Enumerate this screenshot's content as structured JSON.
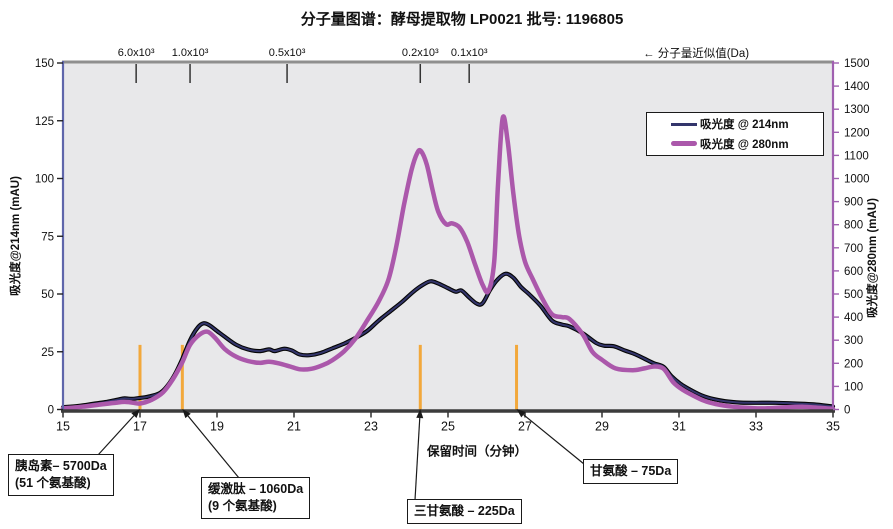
{
  "chart_data": {
    "type": "line",
    "title": "分子量图谱：酵母提取物 LP0021  批号: 1196805",
    "top_axis": {
      "label": "← 分子量近似值(Da)",
      "ticks": [
        {
          "label": "6.0x10³",
          "x": 16.9
        },
        {
          "label": "1.0x10³",
          "x": 18.3
        },
        {
          "label": "0.5x10³",
          "x": 20.82
        },
        {
          "label": "0.2x10³",
          "x": 24.28
        },
        {
          "label": "0.1x10³",
          "x": 25.55
        }
      ]
    },
    "x_axis": {
      "label": "保留时间（分钟）",
      "range": [
        15,
        35
      ],
      "ticks": [
        15,
        17,
        19,
        21,
        23,
        25,
        27,
        29,
        31,
        33,
        35
      ]
    },
    "y_left": {
      "label": "吸光度@214nm (mAU)",
      "range": [
        0,
        150
      ],
      "ticks": [
        0,
        25,
        50,
        75,
        100,
        125,
        150
      ]
    },
    "y_right": {
      "label": "吸光度@280nm (mAU)",
      "range": [
        0,
        1500
      ],
      "ticks": [
        0,
        100,
        200,
        300,
        400,
        500,
        600,
        700,
        800,
        900,
        1000,
        1100,
        1200,
        1300,
        1400,
        1500
      ]
    },
    "grid": false,
    "legend_position": "upper-right",
    "plot_background": "#e8e8ea",
    "series": [
      {
        "name": "吸光度 @ 214nm",
        "axis": "left",
        "color": "#33356b",
        "shadow_color": "#050505",
        "points": [
          [
            15,
            1
          ],
          [
            15.4,
            1.5
          ],
          [
            15.8,
            2.5
          ],
          [
            16.1,
            3.2
          ],
          [
            16.4,
            4.2
          ],
          [
            16.6,
            4.8
          ],
          [
            16.8,
            4.6
          ],
          [
            17.0,
            5
          ],
          [
            17.2,
            5.5
          ],
          [
            17.5,
            7
          ],
          [
            17.7,
            10
          ],
          [
            17.9,
            15
          ],
          [
            18.1,
            22
          ],
          [
            18.3,
            30
          ],
          [
            18.5,
            35.5
          ],
          [
            18.65,
            37.3
          ],
          [
            18.8,
            36.5
          ],
          [
            19.0,
            34
          ],
          [
            19.2,
            31.5
          ],
          [
            19.5,
            28
          ],
          [
            19.8,
            26
          ],
          [
            20.1,
            25.3
          ],
          [
            20.35,
            26
          ],
          [
            20.5,
            25.3
          ],
          [
            20.75,
            26.3
          ],
          [
            20.95,
            25.5
          ],
          [
            21.15,
            23.8
          ],
          [
            21.4,
            23.5
          ],
          [
            21.7,
            24.5
          ],
          [
            22.0,
            26.5
          ],
          [
            22.3,
            28.5
          ],
          [
            22.6,
            31
          ],
          [
            22.9,
            34
          ],
          [
            23.2,
            38.5
          ],
          [
            23.5,
            42.5
          ],
          [
            23.8,
            46.5
          ],
          [
            24.1,
            51
          ],
          [
            24.35,
            54
          ],
          [
            24.55,
            55.5
          ],
          [
            24.75,
            54.5
          ],
          [
            25.0,
            52.5
          ],
          [
            25.2,
            51
          ],
          [
            25.35,
            51.5
          ],
          [
            25.55,
            48.5
          ],
          [
            25.75,
            45.8
          ],
          [
            25.9,
            46
          ],
          [
            26.1,
            52
          ],
          [
            26.3,
            56.5
          ],
          [
            26.5,
            58.8
          ],
          [
            26.7,
            57
          ],
          [
            26.9,
            53
          ],
          [
            27.1,
            50
          ],
          [
            27.4,
            45
          ],
          [
            27.7,
            38.5
          ],
          [
            27.95,
            36.8
          ],
          [
            28.15,
            36
          ],
          [
            28.5,
            33
          ],
          [
            28.85,
            28.8
          ],
          [
            29.05,
            27.6
          ],
          [
            29.3,
            27.4
          ],
          [
            29.6,
            25.5
          ],
          [
            29.85,
            24
          ],
          [
            30.1,
            22
          ],
          [
            30.35,
            20
          ],
          [
            30.6,
            18.5
          ],
          [
            30.8,
            14.5
          ],
          [
            31.05,
            11
          ],
          [
            31.3,
            8.5
          ],
          [
            31.6,
            6
          ],
          [
            31.9,
            4.5
          ],
          [
            32.2,
            3.6
          ],
          [
            32.6,
            3
          ],
          [
            33.0,
            2.9
          ],
          [
            33.5,
            2.9
          ],
          [
            34.0,
            2.6
          ],
          [
            34.5,
            2.2
          ],
          [
            35.0,
            1.3
          ]
        ]
      },
      {
        "name": "吸光度 @ 280nm",
        "axis": "right",
        "color": "#ab58ab",
        "points": [
          [
            15,
            5
          ],
          [
            15.5,
            12
          ],
          [
            16,
            22
          ],
          [
            16.4,
            30
          ],
          [
            16.6,
            33
          ],
          [
            16.8,
            30
          ],
          [
            17.0,
            26
          ],
          [
            17.3,
            42
          ],
          [
            17.6,
            75
          ],
          [
            17.85,
            130
          ],
          [
            18.1,
            205
          ],
          [
            18.3,
            280
          ],
          [
            18.55,
            325
          ],
          [
            18.75,
            337
          ],
          [
            18.95,
            310
          ],
          [
            19.2,
            262
          ],
          [
            19.5,
            228
          ],
          [
            19.8,
            210
          ],
          [
            20.1,
            202
          ],
          [
            20.35,
            207
          ],
          [
            20.6,
            200
          ],
          [
            20.9,
            186
          ],
          [
            21.15,
            174
          ],
          [
            21.45,
            176
          ],
          [
            21.75,
            192
          ],
          [
            22.0,
            214
          ],
          [
            22.3,
            252
          ],
          [
            22.6,
            308
          ],
          [
            22.9,
            385
          ],
          [
            23.2,
            468
          ],
          [
            23.45,
            560
          ],
          [
            23.65,
            700
          ],
          [
            23.85,
            880
          ],
          [
            24.05,
            1035
          ],
          [
            24.2,
            1110
          ],
          [
            24.3,
            1118
          ],
          [
            24.45,
            1060
          ],
          [
            24.6,
            950
          ],
          [
            24.75,
            855
          ],
          [
            24.95,
            802
          ],
          [
            25.1,
            806
          ],
          [
            25.3,
            788
          ],
          [
            25.5,
            725
          ],
          [
            25.7,
            630
          ],
          [
            25.9,
            540
          ],
          [
            26.05,
            513
          ],
          [
            26.2,
            640
          ],
          [
            26.3,
            980
          ],
          [
            26.42,
            1262
          ],
          [
            26.55,
            1160
          ],
          [
            26.7,
            930
          ],
          [
            26.85,
            750
          ],
          [
            27.0,
            640
          ],
          [
            27.2,
            565
          ],
          [
            27.45,
            480
          ],
          [
            27.7,
            412
          ],
          [
            27.95,
            400
          ],
          [
            28.15,
            392
          ],
          [
            28.5,
            325
          ],
          [
            28.75,
            250
          ],
          [
            29.0,
            215
          ],
          [
            29.35,
            178
          ],
          [
            29.8,
            170
          ],
          [
            30.1,
            178
          ],
          [
            30.35,
            186
          ],
          [
            30.6,
            176
          ],
          [
            30.85,
            118
          ],
          [
            31.1,
            85
          ],
          [
            31.35,
            62
          ],
          [
            31.65,
            38
          ],
          [
            31.95,
            24
          ],
          [
            32.4,
            12
          ],
          [
            32.9,
            6
          ],
          [
            33.3,
            5
          ],
          [
            33.8,
            10
          ],
          [
            34.2,
            12
          ],
          [
            34.6,
            8
          ],
          [
            35.0,
            3
          ]
        ]
      }
    ],
    "markers": {
      "color": "#f2a83c",
      "top_mAU": 28,
      "positions": [
        17.0,
        18.1,
        24.28,
        26.78
      ]
    },
    "annotations": [
      {
        "id": "insulin",
        "lines": [
          "胰岛素– 5700Da",
          "(51 个氨基酸)"
        ],
        "target_x": 17.0
      },
      {
        "id": "bradykinin",
        "lines": [
          "缓激肽 – 1060Da",
          "(9 个氨基酸)"
        ],
        "target_x": 18.1
      },
      {
        "id": "triglycine",
        "lines": [
          "三甘氨酸 – 225Da"
        ],
        "target_x": 24.28
      },
      {
        "id": "glycine",
        "lines": [
          "甘氨酸  – 75Da"
        ],
        "target_x": 26.78
      }
    ],
    "axis_colors": {
      "left": "#5f66ab",
      "right": "#a060b0",
      "top": "#8f8f8f",
      "bottom": "#3c3c3c"
    }
  }
}
